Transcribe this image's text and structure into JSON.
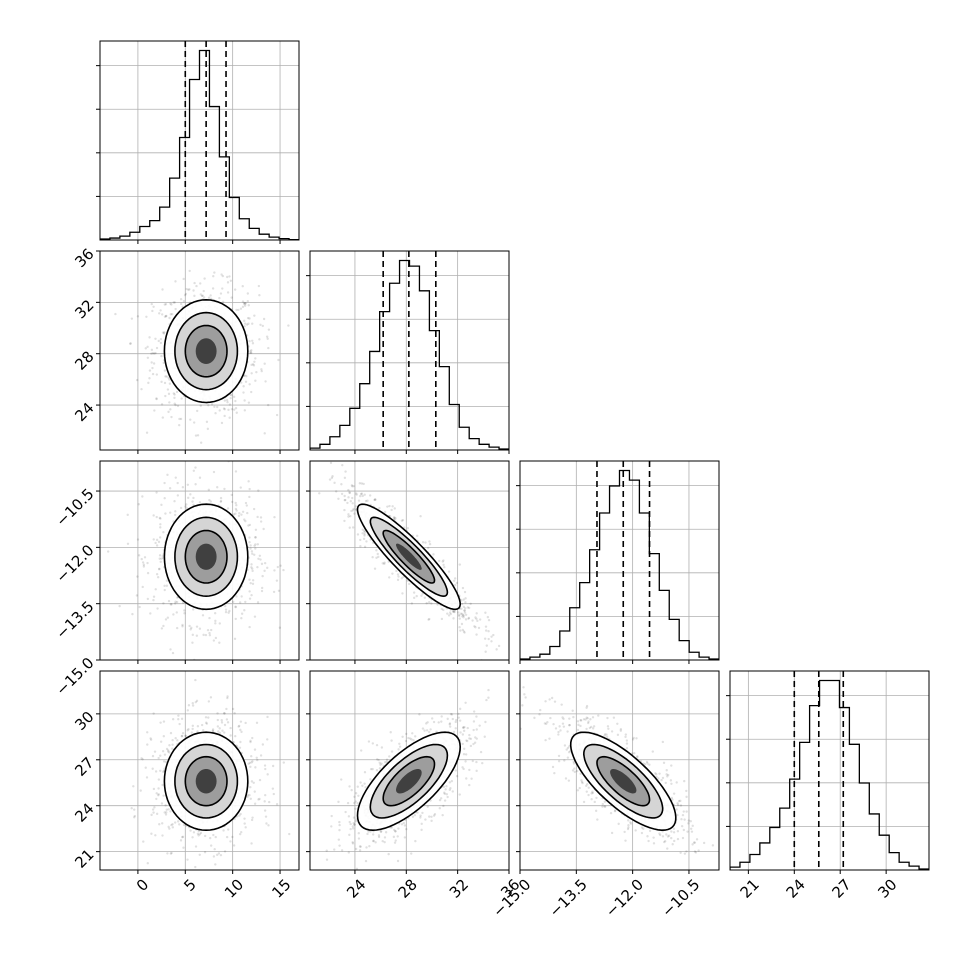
{
  "chart_data": {
    "type": "corner",
    "grid": true,
    "parameters": [
      {
        "range": [
          -4,
          17
        ],
        "ticks": [
          0,
          5,
          10,
          15
        ],
        "tick_labels": [
          "0",
          "5",
          "10",
          "15"
        ],
        "quantiles": [
          5.0,
          7.2,
          9.3
        ],
        "mean": 7.2,
        "sd": 2.2
      },
      {
        "range": [
          20.5,
          36
        ],
        "ticks": [
          24,
          28,
          32,
          36
        ],
        "tick_labels": [
          "24",
          "28",
          "32",
          "36"
        ],
        "quantiles": [
          26.2,
          28.2,
          30.3
        ],
        "mean": 28.2,
        "sd": 2.0
      },
      {
        "range": [
          -15.0,
          -9.7
        ],
        "ticks": [
          -15.0,
          -13.5,
          -12.0,
          -10.5
        ],
        "tick_labels": [
          "−15.0",
          "−13.5",
          "−12.0",
          "−10.5"
        ],
        "quantiles": [
          -12.95,
          -12.25,
          -11.55
        ],
        "mean": -12.25,
        "sd": 0.7
      },
      {
        "range": [
          19.8,
          32.8
        ],
        "ticks": [
          21,
          24,
          27,
          30
        ],
        "tick_labels": [
          "21",
          "24",
          "27",
          "30"
        ],
        "quantiles": [
          24.0,
          25.6,
          27.2
        ],
        "mean": 25.6,
        "sd": 1.6
      }
    ],
    "histograms": [
      [
        0.005,
        0.01,
        0.02,
        0.04,
        0.07,
        0.1,
        0.17,
        0.32,
        0.53,
        0.83,
        0.98,
        0.69,
        0.43,
        0.22,
        0.11,
        0.06,
        0.03,
        0.015,
        0.007,
        0.002
      ],
      [
        0.01,
        0.03,
        0.07,
        0.13,
        0.22,
        0.35,
        0.52,
        0.73,
        0.88,
        1.0,
        0.97,
        0.84,
        0.63,
        0.44,
        0.24,
        0.12,
        0.06,
        0.03,
        0.015,
        0.005
      ],
      [
        0.005,
        0.015,
        0.03,
        0.07,
        0.15,
        0.27,
        0.4,
        0.57,
        0.76,
        0.9,
        0.98,
        0.93,
        0.76,
        0.55,
        0.36,
        0.21,
        0.1,
        0.04,
        0.015,
        0.005
      ],
      [
        0.015,
        0.04,
        0.08,
        0.14,
        0.22,
        0.32,
        0.47,
        0.66,
        0.85,
        0.98,
        0.98,
        0.84,
        0.65,
        0.45,
        0.29,
        0.18,
        0.09,
        0.04,
        0.02,
        0.005
      ]
    ],
    "correlations": {
      "1-0": 0.0,
      "2-0": 0.0,
      "2-1": -0.9,
      "3-0": 0.0,
      "3-1": 0.7,
      "3-2": -0.75
    }
  }
}
